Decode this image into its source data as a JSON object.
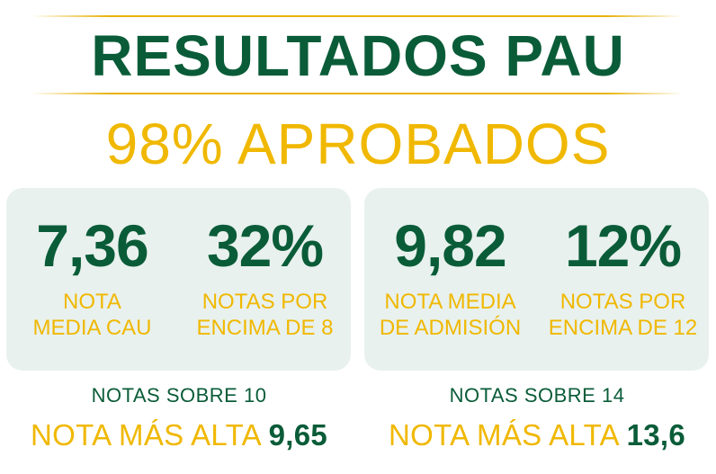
{
  "title": "RESULTADOS PAU",
  "subtitle": "98% APROBADOS",
  "colors": {
    "green": "#0a5c38",
    "gold": "#f0b800",
    "card_bg": "#e8f1ee"
  },
  "cards": [
    {
      "stats": [
        {
          "value": "7,36",
          "label": "NOTA\nMEDIA CAU"
        },
        {
          "value": "32%",
          "label": "NOTAS POR\nENCIMA DE 8"
        }
      ],
      "scale": "NOTAS SOBRE 10",
      "highest_label": "NOTA MÁS ALTA",
      "highest_value": "9,65"
    },
    {
      "stats": [
        {
          "value": "9,82",
          "label": "NOTA MEDIA\nDE ADMISIÓN"
        },
        {
          "value": "12%",
          "label": "NOTAS POR\nENCIMA DE 12"
        }
      ],
      "scale": "NOTAS SOBRE 14",
      "highest_label": "NOTA MÁS ALTA",
      "highest_value": "13,6"
    }
  ]
}
